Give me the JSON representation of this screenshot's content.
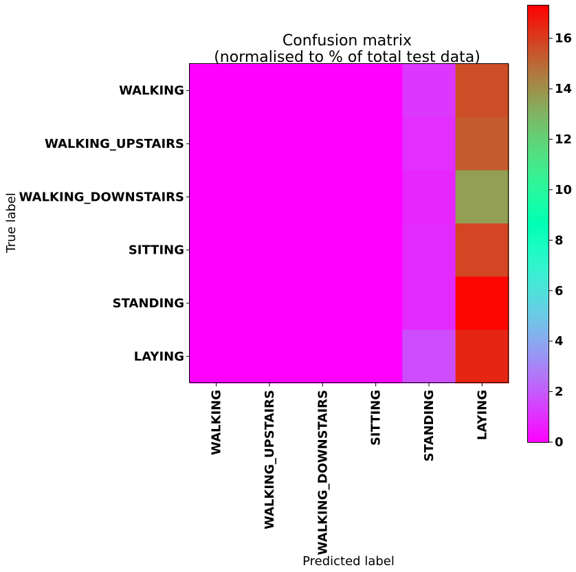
{
  "chart_data": {
    "type": "heatmap",
    "title": [
      "Confusion matrix",
      "(normalised to % of total test data)"
    ],
    "xlabel": "Predicted label",
    "ylabel": "True label",
    "x_categories": [
      "WALKING",
      "WALKING_UPSTAIRS",
      "WALKING_DOWNSTAIRS",
      "SITTING",
      "STANDING",
      "LAYING"
    ],
    "y_categories": [
      "WALKING",
      "WALKING_UPSTAIRS",
      "WALKING_DOWNSTAIRS",
      "SITTING",
      "STANDING",
      "LAYING"
    ],
    "matrix": [
      [
        0,
        0,
        0,
        0,
        1.2,
        15.6
      ],
      [
        0,
        0,
        0,
        0,
        1.0,
        15.3
      ],
      [
        0,
        0,
        0,
        0,
        0.8,
        13.6
      ],
      [
        0,
        0,
        0,
        0,
        0.9,
        15.8
      ],
      [
        0,
        0,
        0,
        0,
        0.9,
        17.2
      ],
      [
        0,
        0,
        0,
        0,
        1.7,
        16.5
      ]
    ],
    "colormap": "rainbow",
    "colorbar": {
      "min": 0,
      "max": 17.3,
      "ticks": [
        0,
        2,
        4,
        6,
        8,
        10,
        12,
        14,
        16
      ]
    }
  }
}
